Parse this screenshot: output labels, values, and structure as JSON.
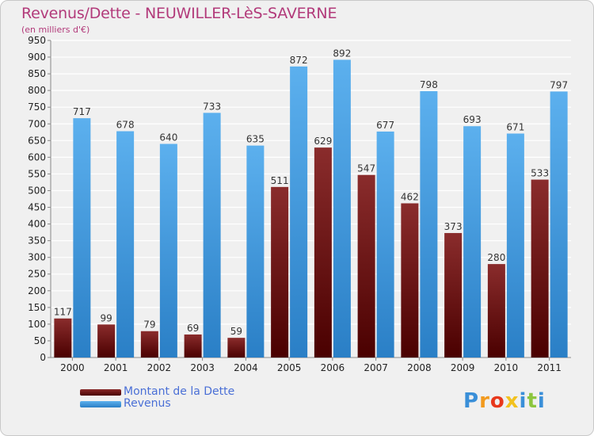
{
  "header": {
    "title": "Revenus/Dette - NEUWILLER-LèS-SAVERNE",
    "subtitle": "(en milliers d'€)"
  },
  "legend": {
    "items": [
      {
        "label": "Montant de la Dette",
        "color": "#7a1010"
      },
      {
        "label": "Revenus",
        "color": "#4aa3e8"
      }
    ]
  },
  "logo": {
    "text": "Proxiti",
    "colors": [
      "#3a8fd8",
      "#f29a1e",
      "#e8381c",
      "#f2c21e",
      "#3a8fd8",
      "#8cc63f",
      "#3a8fd8"
    ]
  },
  "chart_data": {
    "type": "bar",
    "title": "Revenus/Dette - NEUWILLER-LèS-SAVERNE",
    "subtitle": "(en milliers d'€)",
    "xlabel": "",
    "ylabel": "",
    "categories": [
      "2000",
      "2001",
      "2002",
      "2003",
      "2004",
      "2005",
      "2006",
      "2007",
      "2008",
      "2009",
      "2010",
      "2011"
    ],
    "series": [
      {
        "name": "Montant de la Dette",
        "color": "#7a1010",
        "values": [
          117,
          99,
          79,
          69,
          59,
          511,
          629,
          547,
          462,
          373,
          280,
          533
        ]
      },
      {
        "name": "Revenus",
        "color": "#4aa3e8",
        "values": [
          717,
          678,
          640,
          733,
          635,
          872,
          892,
          677,
          798,
          693,
          671,
          797
        ]
      }
    ],
    "ylim": [
      0,
      950
    ],
    "yticks": [
      0,
      50,
      100,
      150,
      200,
      250,
      300,
      350,
      400,
      450,
      500,
      550,
      600,
      650,
      700,
      750,
      800,
      850,
      900,
      950
    ],
    "grid": true,
    "legend_position": "bottom-left"
  }
}
